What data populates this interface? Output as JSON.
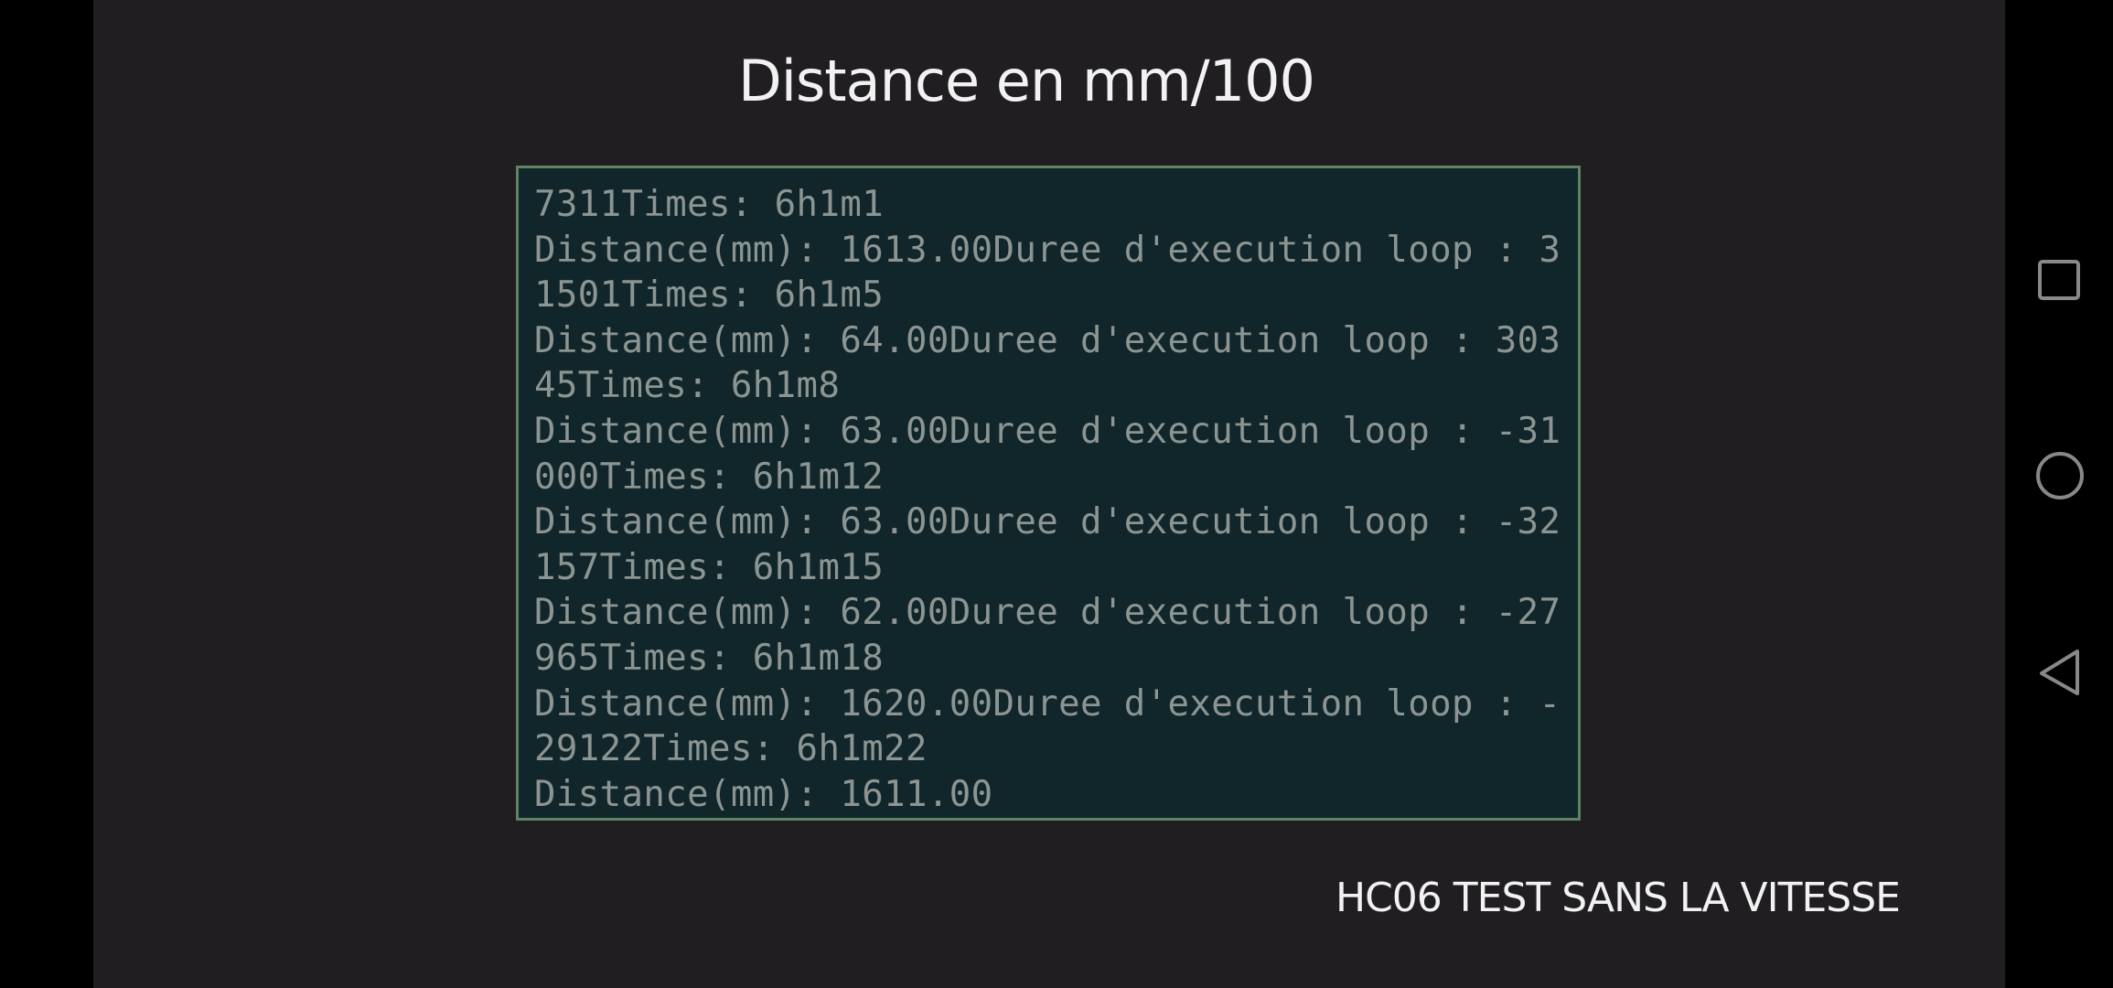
{
  "app": {
    "title": "Distance en mm/100",
    "terminal_lines": [
      "7311Times: 6h1m1",
      "Distance(mm): 1613.00Duree d'execution loop : 3",
      "1501Times: 6h1m5",
      "Distance(mm): 64.00Duree d'execution loop : 303",
      "45Times: 6h1m8",
      "Distance(mm): 63.00Duree d'execution loop : -31",
      "000Times: 6h1m12",
      "Distance(mm): 63.00Duree d'execution loop : -32",
      "157Times: 6h1m15",
      "Distance(mm): 62.00Duree d'execution loop : -27",
      "965Times: 6h1m18",
      "Distance(mm): 1620.00Duree d'execution loop : -",
      "29122Times: 6h1m22",
      "Distance(mm): 1611.00"
    ],
    "footer_label": "HC06 TEST SANS LA VITESSE"
  },
  "nav_bar": {
    "buttons": [
      "recents-icon",
      "home-icon",
      "back-icon"
    ],
    "icon_color": "#888888"
  },
  "colors": {
    "background": "#211e22",
    "terminal_bg": "#11262a",
    "terminal_border": "#5e8462",
    "terminal_text": "#8c9592"
  }
}
